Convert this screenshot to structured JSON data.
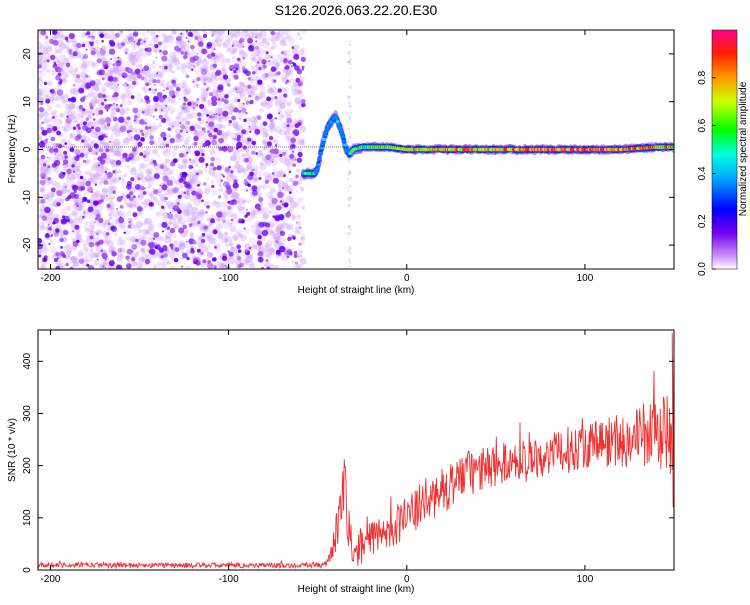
{
  "page_title": "S126.2026.063.22.20.E30",
  "chart_data": [
    {
      "type": "heatmap",
      "title": "S126.2026.063.22.20.E30",
      "xlabel": "Height of straight line (km)",
      "ylabel": "Frequency (Hz)",
      "xlim": [
        -207,
        150
      ],
      "ylim": [
        -25,
        25
      ],
      "xticks": [
        -200,
        -100,
        0,
        100
      ],
      "yticks": [
        -20,
        -10,
        0,
        10,
        20
      ],
      "noise_region": {
        "x": [
          -207,
          -58
        ],
        "y": [
          -25,
          25
        ]
      },
      "signal_trace": {
        "x": [
          -58,
          -55,
          -52,
          -50,
          -48,
          -46,
          -44,
          -42,
          -40,
          -38,
          -36,
          -34,
          -32,
          -30,
          -25,
          -20,
          -10,
          0,
          20,
          50,
          80,
          100,
          120,
          140,
          150
        ],
        "freq": [
          -5,
          -5,
          -5,
          -4,
          0,
          3,
          5,
          6,
          7,
          5,
          3,
          0,
          -1,
          0,
          0.5,
          0.5,
          0.5,
          0,
          0,
          0,
          0,
          0,
          0,
          0.5,
          0.5
        ],
        "intensity": [
          0.45,
          0.5,
          0.4,
          0.35,
          0.3,
          0.3,
          0.35,
          0.3,
          0.3,
          0.3,
          0.3,
          0.35,
          0.4,
          0.5,
          0.55,
          0.6,
          0.65,
          0.7,
          0.75,
          0.8,
          0.85,
          0.85,
          0.85,
          0.8,
          0.75
        ]
      },
      "colorbar": {
        "label": "Normalized spectral amplitude",
        "range": [
          0,
          1
        ],
        "ticks": [
          "0.0",
          "0.2",
          "0.4",
          "0.6",
          "0.8"
        ],
        "tick_values": [
          0,
          0.2,
          0.4,
          0.6,
          0.8
        ]
      }
    },
    {
      "type": "line",
      "xlabel": "Height of straight line (km)",
      "ylabel": "SNR (10 * v/v)",
      "xlim": [
        -207,
        150
      ],
      "ylim": [
        0,
        460
      ],
      "xticks": [
        -200,
        -100,
        0,
        100
      ],
      "yticks": [
        0,
        100,
        200,
        300,
        400
      ],
      "color": "#ee3333",
      "series": [
        {
          "name": "SNR",
          "x": [
            -207,
            -150,
            -100,
            -60,
            -45,
            -42,
            -38,
            -35,
            -33,
            -30,
            -25,
            -20,
            -10,
            0,
            10,
            20,
            30,
            40,
            50,
            60,
            70,
            80,
            90,
            100,
            110,
            120,
            130,
            140,
            150
          ],
          "values": [
            10,
            9,
            9,
            9,
            10,
            40,
            90,
            170,
            80,
            40,
            45,
            55,
            80,
            100,
            130,
            150,
            180,
            190,
            200,
            210,
            215,
            220,
            230,
            240,
            245,
            250,
            255,
            260,
            260
          ],
          "spread": [
            5,
            5,
            5,
            5,
            6,
            25,
            45,
            60,
            45,
            35,
            35,
            40,
            40,
            40,
            45,
            45,
            45,
            45,
            40,
            40,
            40,
            40,
            45,
            45,
            50,
            55,
            60,
            70,
            80
          ]
        }
      ]
    }
  ]
}
